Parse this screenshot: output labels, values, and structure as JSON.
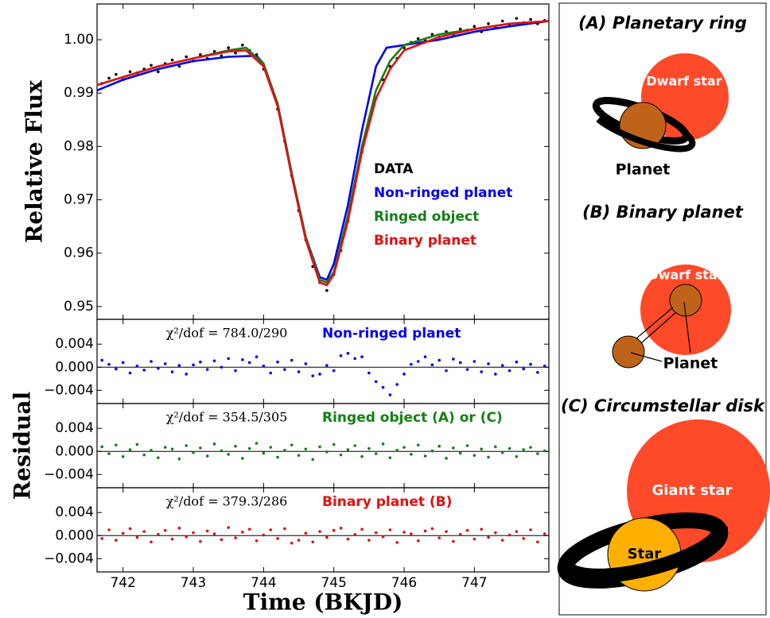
{
  "chart_data": [
    {
      "type": "line",
      "ylabel": "Relative Flux",
      "ylim": [
        0.9476,
        1.0067
      ],
      "yticks": [
        0.95,
        0.96,
        0.97,
        0.98,
        0.99,
        {
          "value": 1,
          "label": "1.00"
        }
      ],
      "series": [
        {
          "name": "DATA",
          "color": "#000000",
          "style": "points",
          "x": [
            741.7,
            741.8,
            741.9,
            742,
            742.1,
            742.2,
            742.3,
            742.4,
            742.5,
            742.6,
            742.7,
            742.8,
            742.9,
            743,
            743.1,
            743.2,
            743.3,
            743.4,
            743.5,
            743.6,
            743.7,
            743.8,
            743.9,
            744,
            744.1,
            744.2,
            744.3,
            744.4,
            744.5,
            744.6,
            744.7,
            744.8,
            744.9,
            745,
            745.1,
            745.2,
            745.3,
            745.4,
            745.5,
            745.6,
            745.7,
            745.8,
            745.9,
            746,
            746.1,
            746.2,
            746.3,
            746.4,
            746.5,
            746.6,
            746.7,
            746.8,
            746.9,
            747,
            747.1,
            747.2,
            747.3,
            747.4,
            747.5,
            747.6,
            747.7,
            747.8,
            747.9,
            748
          ],
          "values": [
            0.9918,
            0.9928,
            0.9935,
            0.9925,
            0.994,
            0.9938,
            0.9945,
            0.9952,
            0.994,
            0.9955,
            0.9962,
            0.995,
            0.9968,
            0.996,
            0.9972,
            0.9965,
            0.9978,
            0.997,
            0.9985,
            0.9975,
            0.999,
            0.998,
            0.9972,
            0.9945,
            0.9915,
            0.987,
            0.981,
            0.9745,
            0.968,
            0.9625,
            0.9575,
            0.9545,
            0.953,
            0.956,
            0.9605,
            0.966,
            0.9725,
            0.979,
            0.985,
            0.989,
            0.9925,
            0.995,
            0.9965,
            0.9985,
            0.9995,
            1.0002,
            0.9998,
            1.001,
            1.0005,
            1.0015,
            1.001,
            1.002,
            1.0018,
            1.0025,
            1.0015,
            1.003,
            1.0022,
            1.0035,
            1.0028,
            1.004,
            1.0032,
            1.0038,
            1.003,
            1.0036
          ]
        },
        {
          "name": "Non-ringed planet",
          "color": "#0000ee",
          "style": "line",
          "x": [
            741.63,
            742,
            742.5,
            743,
            743.5,
            743.9,
            744,
            744.2,
            744.4,
            744.6,
            744.8,
            744.9,
            745,
            745.2,
            745.4,
            745.6,
            745.75,
            746,
            746.5,
            747,
            747.5,
            748.06
          ],
          "values": [
            0.9905,
            0.9925,
            0.9945,
            0.996,
            0.9968,
            0.997,
            0.9955,
            0.988,
            0.975,
            0.963,
            0.9555,
            0.955,
            0.958,
            0.969,
            0.983,
            0.995,
            0.9985,
            0.999,
            1,
            1.0015,
            1.0025,
            1.0035
          ]
        },
        {
          "name": "Ringed object",
          "color": "#138013",
          "style": "line",
          "x": [
            741.63,
            742,
            742.5,
            743,
            743.5,
            743.75,
            744,
            744.2,
            744.4,
            744.6,
            744.8,
            744.9,
            745,
            745.2,
            745.4,
            745.6,
            745.8,
            746,
            746.5,
            747,
            747.5,
            748.06
          ],
          "values": [
            0.9915,
            0.993,
            0.995,
            0.9965,
            0.998,
            0.9985,
            0.9955,
            0.988,
            0.975,
            0.963,
            0.955,
            0.9545,
            0.9565,
            0.967,
            0.98,
            0.9905,
            0.996,
            0.999,
            1.001,
            1.002,
            1.003,
            1.0035
          ]
        },
        {
          "name": "Binary planet",
          "color": "#e01010",
          "style": "line",
          "x": [
            741.63,
            742,
            742.5,
            743,
            743.5,
            743.75,
            744,
            744.2,
            744.4,
            744.6,
            744.8,
            744.9,
            745,
            745.2,
            745.4,
            745.6,
            745.8,
            746,
            746.5,
            747,
            747.5,
            748.06
          ],
          "values": [
            0.9915,
            0.993,
            0.995,
            0.9965,
            0.9978,
            0.998,
            0.995,
            0.9875,
            0.9745,
            0.9625,
            0.9545,
            0.954,
            0.956,
            0.966,
            0.979,
            0.989,
            0.9945,
            0.998,
            1.0005,
            1.002,
            1.003,
            1.0035
          ]
        }
      ]
    },
    {
      "type": "scatter",
      "annotation": "χ²/dof = 784.0/290",
      "ylim": [
        -0.0063,
        0.0083
      ],
      "yticks": [
        {
          "value": -0.004,
          "label": "−0.004"
        },
        {
          "value": 0,
          "label": "0.000"
        },
        0.004
      ],
      "series": [
        {
          "name": "Non-ringed planet",
          "color": "#0000ee",
          "x": [
            741.7,
            741.8,
            741.9,
            742,
            742.1,
            742.2,
            742.3,
            742.4,
            742.5,
            742.6,
            742.7,
            742.8,
            742.9,
            743,
            743.1,
            743.2,
            743.3,
            743.4,
            743.5,
            743.6,
            743.7,
            743.8,
            743.9,
            744,
            744.1,
            744.2,
            744.3,
            744.4,
            744.5,
            744.6,
            744.7,
            744.8,
            744.9,
            745,
            745.1,
            745.2,
            745.3,
            745.4,
            745.5,
            745.6,
            745.7,
            745.8,
            745.9,
            746,
            746.1,
            746.2,
            746.3,
            746.4,
            746.5,
            746.6,
            746.7,
            746.8,
            746.9,
            747,
            747.1,
            747.2,
            747.3,
            747.4,
            747.5,
            747.6,
            747.7,
            747.8,
            747.9,
            748
          ],
          "values": [
            0.0012,
            0.0005,
            -0.0003,
            0.0008,
            -0.001,
            0.0002,
            -0.0005,
            0.001,
            -0.0002,
            0.0006,
            -0.0008,
            0.0003,
            -0.0012,
            0.0004,
            0.0009,
            -0.0004,
            0.0011,
            0,
            0.0015,
            -0.0006,
            0.0013,
            0.0008,
            0.0018,
            0.0002,
            -0.001,
            0.0009,
            -0.0004,
            0.0012,
            -0.0008,
            0.0006,
            -0.0015,
            -0.0012,
            0.0003,
            -0.0006,
            0.002,
            0.0024,
            0.0015,
            0.0018,
            -0.001,
            -0.0025,
            -0.0035,
            -0.0048,
            -0.003,
            -0.0012,
            0.0005,
            0.001,
            0.0018,
            0.0004,
            0.0012,
            -0.0006,
            0.0014,
            0.0008,
            -0.0004,
            0.001,
            -0.0008,
            0.0006,
            -0.0012,
            0.0003,
            -0.0006,
            0.0009,
            -0.0003,
            0.0005,
            -0.0009,
            0.0002
          ]
        }
      ]
    },
    {
      "type": "scatter",
      "annotation": "χ²/dof = 354.5/305",
      "ylabel": "Residual",
      "ylim": [
        -0.0063,
        0.0083
      ],
      "yticks": [
        {
          "value": -0.004,
          "label": "−0.004"
        },
        {
          "value": 0,
          "label": "0.000"
        },
        0.004
      ],
      "series": [
        {
          "name": "Ringed object (A) or (C)",
          "color": "#138013",
          "x": [
            741.7,
            741.8,
            741.9,
            742,
            742.1,
            742.2,
            742.3,
            742.4,
            742.5,
            742.6,
            742.7,
            742.8,
            742.9,
            743,
            743.1,
            743.2,
            743.3,
            743.4,
            743.5,
            743.6,
            743.7,
            743.8,
            743.9,
            744,
            744.1,
            744.2,
            744.3,
            744.4,
            744.5,
            744.6,
            744.7,
            744.8,
            744.9,
            745,
            745.1,
            745.2,
            745.3,
            745.4,
            745.5,
            745.6,
            745.7,
            745.8,
            745.9,
            746,
            746.1,
            746.2,
            746.3,
            746.4,
            746.5,
            746.6,
            746.7,
            746.8,
            746.9,
            747,
            747.1,
            747.2,
            747.3,
            747.4,
            747.5,
            747.6,
            747.7,
            747.8,
            747.9,
            748
          ],
          "values": [
            0.0008,
            -0.0004,
            0.0011,
            -0.0009,
            0.0003,
            0.0012,
            -0.0006,
            0.0002,
            -0.0011,
            0.0007,
            0.0004,
            -0.0013,
            0.001,
            -0.0002,
            0.0006,
            -0.0008,
            0.0013,
            0.0001,
            -0.0005,
            0.0009,
            -0.0012,
            0.0005,
            0.0014,
            -0.0003,
            0.0007,
            -0.001,
            0.0002,
            0.0011,
            -0.0007,
            0.0004,
            -0.0014,
            0.0008,
            -0.0001,
            0.0012,
            -0.0006,
            0.0003,
            0.001,
            -0.0009,
            0.0005,
            -0.0004,
            0.0013,
            -0.0011,
            0.0002,
            0.0007,
            -0.0005,
            0.0011,
            -0.0008,
            0.0001,
            0.0009,
            -0.0012,
            0.0006,
            -0.0003,
            0.001,
            -0.0007,
            0.0004,
            -0.001,
            0.0008,
            -0.0002,
            0.0005,
            -0.0009,
            0.0003,
            0.0007,
            -0.0004,
            0.0001
          ]
        }
      ]
    },
    {
      "type": "scatter",
      "annotation": "χ²/dof = 379.3/286",
      "xlabel": "Time (BKJD)",
      "ylim": [
        -0.0063,
        0.0083
      ],
      "yticks": [
        {
          "value": -0.004,
          "label": "−0.004"
        },
        {
          "value": 0,
          "label": "0.000"
        },
        0.004
      ],
      "xlim": [
        741.63,
        748.06
      ],
      "xticks": [
        742,
        743,
        744,
        745,
        746,
        747
      ],
      "series": [
        {
          "name": "Binary planet (B)",
          "color": "#e01010",
          "x": [
            741.7,
            741.8,
            741.9,
            742,
            742.1,
            742.2,
            742.3,
            742.4,
            742.5,
            742.6,
            742.7,
            742.8,
            742.9,
            743,
            743.1,
            743.2,
            743.3,
            743.4,
            743.5,
            743.6,
            743.7,
            743.8,
            743.9,
            744,
            744.1,
            744.2,
            744.3,
            744.4,
            744.5,
            744.6,
            744.7,
            744.8,
            744.9,
            745,
            745.1,
            745.2,
            745.3,
            745.4,
            745.5,
            745.6,
            745.7,
            745.8,
            745.9,
            746,
            746.1,
            746.2,
            746.3,
            746.4,
            746.5,
            746.6,
            746.7,
            746.8,
            746.9,
            747,
            747.1,
            747.2,
            747.3,
            747.4,
            747.5,
            747.6,
            747.7,
            747.8,
            747.9,
            748
          ],
          "values": [
            -0.0005,
            0.001,
            -0.0008,
            0.0004,
            0.0012,
            -0.0003,
            0.0007,
            -0.0011,
            0.0002,
            0.0009,
            -0.0006,
            0.0013,
            -0.0002,
            0.0005,
            -0.001,
            0.0008,
            0.0003,
            -0.0007,
            0.0014,
            -0.0004,
            0.0006,
            0.0011,
            -0.0009,
            0.0001,
            0.001,
            -0.0005,
            0.0012,
            -0.0013,
            -0.0008,
            0.0004,
            -0.0011,
            0.0007,
            -0.0003,
            0.0009,
            0.0013,
            -0.0006,
            0.0002,
            0.0011,
            -0.0008,
            0.0005,
            -0.0002,
            0.001,
            -0.0012,
            0.0006,
            0.0003,
            -0.0009,
            0.0008,
            0.0012,
            -0.0004,
            0.0007,
            -0.001,
            0.0002,
            0.0009,
            -0.0006,
            0.0011,
            -0.0003,
            0.0005,
            -0.0008,
            0.0001,
            0.0007,
            -0.0005,
            0.001,
            -0.0011,
            0.0003
          ]
        }
      ]
    }
  ],
  "diagram": {
    "panels": [
      {
        "title": "(A) Planetary ring",
        "labels": [
          "Dwarf star",
          "Planet"
        ]
      },
      {
        "title": "(B) Binary planet",
        "labels": [
          "Dwarf star",
          "Planet"
        ]
      },
      {
        "title": "(C) Circumstellar disk",
        "labels": [
          "Giant star",
          "Star"
        ]
      }
    ]
  }
}
